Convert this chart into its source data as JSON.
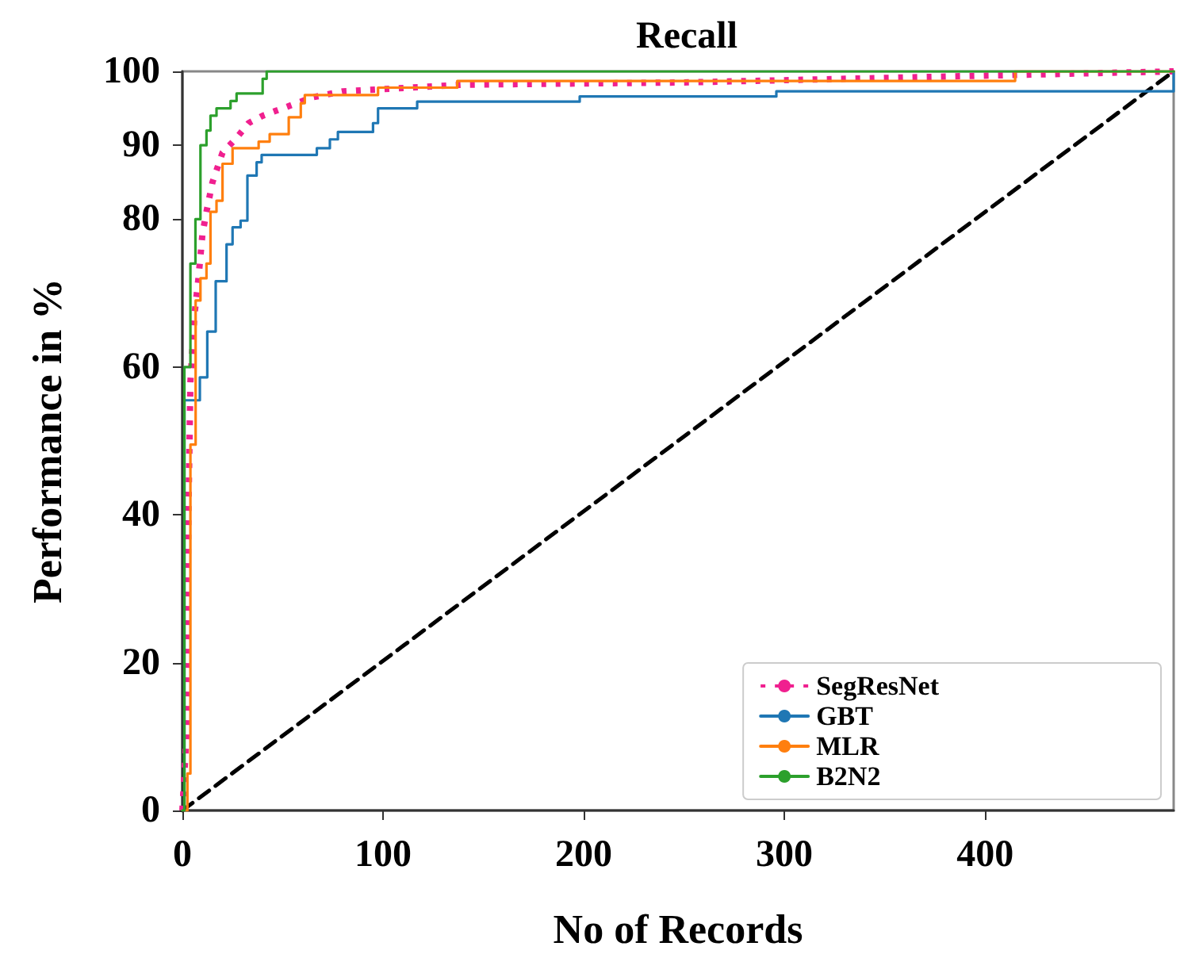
{
  "chart_data": {
    "type": "step",
    "title": "Recall",
    "xlabel": "No of Records",
    "ylabel": "Performance in %",
    "xlim": [
      0,
      494
    ],
    "xticks": [
      0,
      100,
      200,
      300,
      400
    ],
    "ylim": [
      0,
      100
    ],
    "yticks": [
      0,
      20,
      40,
      60,
      80,
      90,
      100
    ],
    "grid": false,
    "legend": "bottom right",
    "marker": "none",
    "series": [
      {
        "name": "SegResNet",
        "type": "line",
        "line_style": "dotted",
        "color": "#f0208f",
        "x": [
          0,
          2,
          3,
          4,
          6,
          8,
          10,
          12,
          15,
          20,
          27,
          33,
          40,
          55,
          65,
          80,
          140,
          250,
          494
        ],
        "values": [
          0,
          10,
          40,
          58,
          67,
          72,
          78,
          81,
          85,
          89,
          91,
          93,
          94,
          95.5,
          96.5,
          97.3,
          98.2,
          98.5,
          100
        ]
      },
      {
        "name": "GBT",
        "line_style": "solid",
        "color": "#1f77b4",
        "x": [
          0,
          1,
          8.7,
          12.4,
          16.6,
          22,
          25,
          29,
          32.4,
          37,
          39.5,
          67,
          73.5,
          77.5,
          95,
          97.5,
          117,
          198,
          296,
          494
        ],
        "values": [
          0,
          55.5,
          58.6,
          64.8,
          71.6,
          76.6,
          78.9,
          79.8,
          85.9,
          87.7,
          88.7,
          89.6,
          90.8,
          91.8,
          93,
          95,
          95.9,
          96.6,
          97.3,
          100
        ]
      },
      {
        "name": "MLR",
        "line_style": "solid",
        "color": "#ff7f0e",
        "x": [
          0,
          2.5,
          4,
          6.6,
          9,
          12,
          14,
          17,
          20,
          25,
          38,
          43.5,
          53,
          59,
          61,
          97.5,
          137,
          415,
          494
        ],
        "values": [
          0,
          5,
          49.5,
          69,
          72,
          74,
          81,
          82.5,
          87.5,
          89.6,
          90.5,
          91.5,
          93.8,
          95.7,
          96.8,
          97.8,
          98.7,
          100,
          100
        ]
      },
      {
        "name": "B2N2",
        "line_style": "solid",
        "color": "#2ca02c",
        "x": [
          0,
          1,
          4,
          6.5,
          9,
          12,
          14,
          17,
          24,
          27,
          40,
          42,
          494
        ],
        "values": [
          0,
          60,
          74,
          80,
          90,
          92,
          94,
          95,
          96,
          97,
          99,
          100,
          100
        ]
      },
      {
        "type": "line",
        "line_style": "dashed",
        "color": "#000000",
        "x": [
          0,
          494
        ],
        "values": [
          0,
          100
        ]
      }
    ]
  }
}
